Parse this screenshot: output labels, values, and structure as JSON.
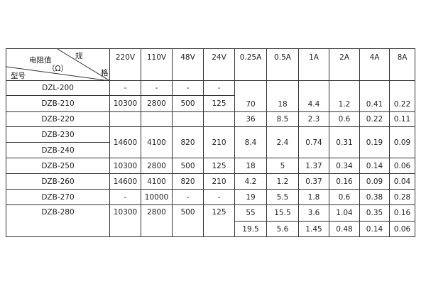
{
  "corner": {
    "spec_a": "规",
    "spec_b": "格",
    "resistance": "电阻值",
    "unit": "（Ω）",
    "model": "型号"
  },
  "columns": [
    "220V",
    "110V",
    "48V",
    "24V",
    "0.25A",
    "0.5A",
    "1A",
    "2A",
    "4A",
    "8A"
  ],
  "models": [
    "DZL-200",
    "DZB-210",
    "DZB-220",
    "DZB-230",
    "DZB-240",
    "DZB-250",
    "DZB-260",
    "DZB-270",
    "DZB-280"
  ],
  "voltage_rows": {
    "dzl200": [
      "-",
      "-",
      "-",
      "-"
    ],
    "dzb210": [
      "10300",
      "2800",
      "500",
      "125"
    ],
    "dzb230_240": [
      "14600",
      "4100",
      "820",
      "210"
    ],
    "dzb250": [
      "10300",
      "2800",
      "500",
      "125"
    ],
    "dzb260": [
      "14600",
      "4100",
      "820",
      "210"
    ],
    "dzb270": [
      "-",
      "10000",
      "-",
      "-"
    ],
    "dzb280": [
      "10300",
      "2800",
      "500",
      "125"
    ]
  },
  "current_rows": {
    "dzl200_210": [
      "70",
      "18",
      "4.4",
      "1.2",
      "0.41",
      "0.22"
    ],
    "dzb220": [
      "36",
      "8.5",
      "2.3",
      "0.6",
      "0.22",
      "0.11"
    ],
    "dzb230_240": [
      "8.4",
      "2.4",
      "0.74",
      "0.31",
      "0.19",
      "0.09"
    ],
    "dzb250": [
      "18",
      "5",
      "1.37",
      "0.34",
      "0.14",
      "0.06"
    ],
    "dzb260": [
      "4.2",
      "1.2",
      "0.37",
      "0.16",
      "0.09",
      "0.04"
    ],
    "dzb270": [
      "19",
      "5.5",
      "1.8",
      "0.6",
      "0.38",
      "0.28"
    ],
    "dzb280_a": [
      "55",
      "15.5",
      "3.6",
      "1.04",
      "0.35",
      "0.16"
    ],
    "dzb280_b": [
      "19.5",
      "5.6",
      "1.45",
      "0.48",
      "0.14",
      "0.06"
    ]
  }
}
